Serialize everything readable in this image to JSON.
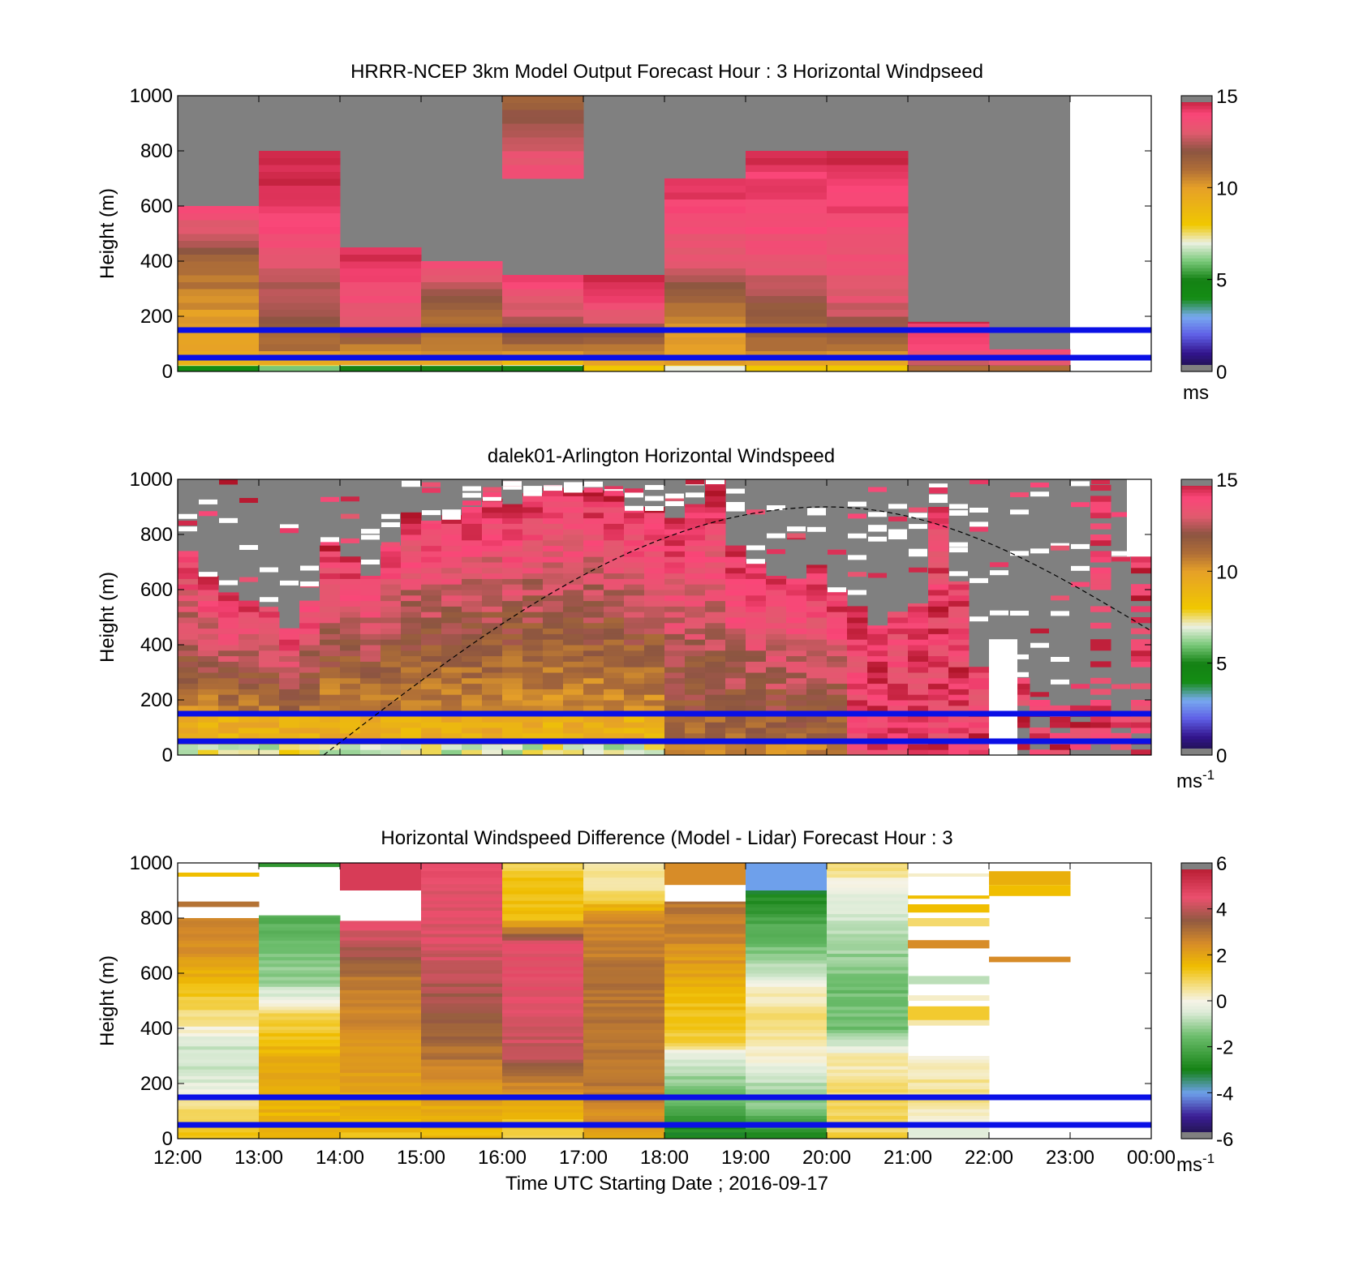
{
  "chart_data": [
    {
      "type": "heatmap",
      "title": "HRRR-NCEP 3km Model Output   Forecast Hour : 3 Horizontal Windpseed",
      "ylabel": "Height (m)",
      "xlabel": "",
      "ylim": [
        0,
        1000
      ],
      "yticks": [
        "0",
        "200",
        "400",
        "600",
        "800",
        "1000"
      ],
      "colorbar": {
        "ticks": [
          "0",
          "5",
          "10",
          "15"
        ],
        "range": [
          0,
          15
        ],
        "unit": "ms",
        "colormap": "speed"
      },
      "reference_lines": [
        50,
        150
      ],
      "hours": [
        {
          "top": 600,
          "profile": [
            [
              0,
              5
            ],
            [
              20,
              9
            ],
            [
              60,
              9.5
            ],
            [
              200,
              10
            ],
            [
              350,
              11
            ],
            [
              450,
              12
            ],
            [
              520,
              13
            ],
            [
              600,
              14
            ]
          ]
        },
        {
          "top": 800,
          "profile": [
            [
              0,
              7
            ],
            [
              30,
              9
            ],
            [
              80,
              11
            ],
            [
              200,
              12
            ],
            [
              300,
              12.5
            ],
            [
              450,
              13.5
            ],
            [
              550,
              14
            ],
            [
              650,
              14.5
            ],
            [
              800,
              14.5
            ]
          ]
        },
        {
          "top": 450,
          "profile": [
            [
              0,
              6
            ],
            [
              40,
              10
            ],
            [
              100,
              11
            ],
            [
              160,
              13
            ],
            [
              250,
              13.5
            ],
            [
              350,
              14
            ],
            [
              450,
              14.5
            ]
          ]
        },
        {
          "top": 400,
          "profile": [
            [
              0,
              6
            ],
            [
              40,
              10
            ],
            [
              120,
              11
            ],
            [
              250,
              11.5
            ],
            [
              300,
              12.5
            ],
            [
              400,
              14
            ]
          ]
        },
        {
          "top": 1000,
          "gap": [
            350,
            700
          ],
          "profile": [
            [
              0,
              6
            ],
            [
              40,
              9
            ],
            [
              80,
              11
            ],
            [
              180,
              12.5
            ],
            [
              300,
              13.5
            ],
            [
              350,
              14.5
            ],
            [
              700,
              14
            ],
            [
              800,
              13
            ],
            [
              900,
              12
            ],
            [
              1000,
              11.5
            ]
          ]
        },
        {
          "top": 350,
          "profile": [
            [
              0,
              9
            ],
            [
              40,
              10
            ],
            [
              100,
              11
            ],
            [
              200,
              13
            ],
            [
              300,
              14.5
            ],
            [
              350,
              14.5
            ]
          ]
        },
        {
          "top": 700,
          "profile": [
            [
              0,
              8
            ],
            [
              40,
              10
            ],
            [
              200,
              10.5
            ],
            [
              300,
              12
            ],
            [
              400,
              13
            ],
            [
              500,
              13.5
            ],
            [
              600,
              14
            ],
            [
              700,
              14.5
            ]
          ]
        },
        {
          "top": 800,
          "profile": [
            [
              0,
              9
            ],
            [
              40,
              10
            ],
            [
              100,
              11
            ],
            [
              250,
              12
            ],
            [
              350,
              13
            ],
            [
              450,
              13.5
            ],
            [
              600,
              14
            ],
            [
              800,
              14.5
            ]
          ]
        },
        {
          "top": 800,
          "profile": [
            [
              0,
              9
            ],
            [
              40,
              10
            ],
            [
              150,
              12
            ],
            [
              250,
              13
            ],
            [
              400,
              13.5
            ],
            [
              600,
              14
            ],
            [
              800,
              14.5
            ]
          ]
        },
        {
          "top": 180,
          "profile": [
            [
              0,
              12
            ],
            [
              60,
              13.5
            ],
            [
              120,
              14
            ],
            [
              180,
              14.5
            ]
          ]
        },
        {
          "top": 80,
          "profile": [
            [
              0,
              12
            ],
            [
              40,
              13.5
            ],
            [
              80,
              14
            ]
          ]
        }
      ]
    },
    {
      "type": "heatmap",
      "title": "dalek01-Arlington  Horizontal Windspeed",
      "ylabel": "Height (m)",
      "xlabel": "",
      "ylim": [
        0,
        1000
      ],
      "yticks": [
        "0",
        "200",
        "400",
        "600",
        "800",
        "1000"
      ],
      "colorbar": {
        "ticks": [
          "0",
          "5",
          "10",
          "15"
        ],
        "range": [
          0,
          15
        ],
        "unit": "ms",
        "unit_sup": "-1",
        "colormap": "speed"
      },
      "reference_lines": [
        50,
        150
      ],
      "solar_curve": {
        "start_hour": 1.8,
        "peak_hour": 8.0,
        "peak_height": 900,
        "end_hour": 12.0,
        "end_height": 450
      },
      "tops": [
        740,
        650,
        590,
        560,
        520,
        460,
        560,
        760,
        720,
        650,
        760,
        880,
        850,
        870,
        900,
        930,
        910,
        950,
        970,
        960,
        960,
        950,
        900,
        900,
        860,
        910,
        1000,
        760,
        700,
        650,
        640,
        690,
        600,
        540,
        470,
        520,
        550,
        900,
        630,
        320,
        280,
        300,
        200,
        190,
        180,
        1000,
        150,
        1000
      ]
    },
    {
      "type": "heatmap",
      "title": "Horizontal Windspeed Difference (Model - Lidar) Forecast Hour : 3",
      "ylabel": "Height (m)",
      "xlabel": "Time UTC  Starting Date ; 2016-09-17",
      "ylim": [
        0,
        1000
      ],
      "yticks": [
        "0",
        "200",
        "400",
        "600",
        "800",
        "1000"
      ],
      "xticks": [
        "12:00",
        "13:00",
        "14:00",
        "15:00",
        "16:00",
        "17:00",
        "18:00",
        "19:00",
        "20:00",
        "21:00",
        "22:00",
        "23:00",
        "00:00"
      ],
      "colorbar": {
        "ticks": [
          "-6",
          "-4",
          "-2",
          "0",
          "2",
          "4",
          "6"
        ],
        "range": [
          -6,
          6
        ],
        "unit": "ms",
        "unit_sup": "-1",
        "colormap": "diff"
      },
      "reference_lines": [
        50,
        150
      ],
      "hours": [
        {
          "profile": [
            [
              0,
              1.5
            ],
            [
              100,
              1
            ],
            [
              160,
              0
            ],
            [
              250,
              -0.8
            ],
            [
              350,
              -0.5
            ],
            [
              420,
              0.5
            ],
            [
              550,
              1.5
            ],
            [
              700,
              2.5
            ],
            [
              800,
              2.5
            ]
          ],
          "extra_bands": [
            [
              840,
              860,
              3
            ],
            [
              950,
              965,
              1.5
            ]
          ]
        },
        {
          "profile": [
            [
              0,
              1.5
            ],
            [
              200,
              2
            ],
            [
              300,
              1.8
            ],
            [
              450,
              1
            ],
            [
              500,
              0
            ],
            [
              560,
              -1
            ],
            [
              700,
              -1.5
            ],
            [
              810,
              -2
            ]
          ],
          "extra_bands": [
            [
              985,
              1000,
              -2.5
            ]
          ]
        },
        {
          "profile": [
            [
              0,
              1.5
            ],
            [
              200,
              2
            ],
            [
              400,
              2.5
            ],
            [
              600,
              3
            ],
            [
              700,
              4
            ],
            [
              790,
              4.5
            ]
          ],
          "extra_bands": [
            [
              900,
              1000,
              5
            ]
          ]
        },
        {
          "profile": [
            [
              0,
              1.5
            ],
            [
              150,
              2
            ],
            [
              300,
              3
            ],
            [
              450,
              3.5
            ],
            [
              600,
              4
            ],
            [
              800,
              4.5
            ],
            [
              1000,
              4.5
            ]
          ]
        },
        {
          "profile": [
            [
              0,
              1
            ],
            [
              150,
              2
            ],
            [
              300,
              4
            ],
            [
              500,
              4.5
            ],
            [
              700,
              4.5
            ],
            [
              800,
              1.5
            ],
            [
              900,
              1.5
            ],
            [
              1000,
              1
            ]
          ]
        },
        {
          "profile": [
            [
              0,
              2
            ],
            [
              200,
              3
            ],
            [
              400,
              3
            ],
            [
              600,
              3
            ],
            [
              800,
              2.5
            ],
            [
              900,
              0.6
            ],
            [
              1000,
              0.5
            ]
          ]
        },
        {
          "profile": [
            [
              0,
              -3
            ],
            [
              80,
              -2.5
            ],
            [
              150,
              -1.5
            ],
            [
              300,
              -0.5
            ],
            [
              350,
              1
            ],
            [
              500,
              1.5
            ],
            [
              700,
              2.5
            ],
            [
              860,
              3
            ]
          ],
          "extra_bands": [
            [
              920,
              1000,
              2.5
            ]
          ]
        },
        {
          "profile": [
            [
              0,
              -3
            ],
            [
              100,
              -1.5
            ],
            [
              200,
              -0.8
            ],
            [
              300,
              0.2
            ],
            [
              450,
              0.8
            ],
            [
              550,
              0
            ],
            [
              700,
              -1.5
            ],
            [
              900,
              -3
            ]
          ],
          "extra_bands": [
            [
              900,
              1000,
              -4
            ]
          ]
        },
        {
          "profile": [
            [
              0,
              1
            ],
            [
              150,
              0.8
            ],
            [
              300,
              0.3
            ],
            [
              400,
              -1.5
            ],
            [
              550,
              -1.5
            ],
            [
              700,
              -1
            ],
            [
              850,
              -0.5
            ],
            [
              1000,
              0.8
            ]
          ]
        },
        {
          "profile": [
            [
              0,
              -0.5
            ],
            [
              80,
              0.3
            ],
            [
              150,
              0.6
            ],
            [
              250,
              0.4
            ],
            [
              300,
              0
            ]
          ],
          "extra_bands": [
            [
              410,
              430,
              0.4
            ],
            [
              430,
              480,
              1.2
            ],
            [
              500,
              520,
              0.2
            ],
            [
              560,
              590,
              -0.8
            ],
            [
              690,
              720,
              2.5
            ],
            [
              770,
              800,
              0.8
            ],
            [
              820,
              850,
              1.5
            ],
            [
              870,
              870,
              1.5
            ],
            [
              950,
              960,
              0.2
            ]
          ]
        },
        {
          "profile": [],
          "extra_bands": [
            [
              920,
              970,
              1.8
            ],
            [
              880,
              920,
              1.5
            ],
            [
              640,
              660,
              2.5
            ]
          ]
        }
      ]
    }
  ]
}
